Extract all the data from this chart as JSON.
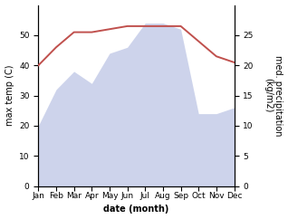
{
  "months": [
    "Jan",
    "Feb",
    "Mar",
    "Apr",
    "May",
    "Jun",
    "Jul",
    "Aug",
    "Sep",
    "Oct",
    "Nov",
    "Dec"
  ],
  "month_positions": [
    1,
    2,
    3,
    4,
    5,
    6,
    7,
    8,
    9,
    10,
    11,
    12
  ],
  "max_temp": [
    40,
    46,
    51,
    51,
    52,
    53,
    53,
    53,
    53,
    48,
    43,
    41
  ],
  "precipitation": [
    10,
    16,
    19,
    17,
    22,
    23,
    27,
    27,
    26,
    12,
    12,
    13
  ],
  "temp_color": "#c0504d",
  "precip_fill_color": "#c5cce8",
  "ylabel_left": "max temp (C)",
  "ylabel_right": "med. precipitation\n(kg/m2)",
  "xlabel": "date (month)",
  "ylim_left": [
    0,
    60
  ],
  "ylim_right": [
    0,
    30
  ],
  "yticks_left": [
    0,
    10,
    20,
    30,
    40,
    50
  ],
  "yticks_right": [
    0,
    5,
    10,
    15,
    20,
    25
  ],
  "background_color": "#ffffff",
  "label_fontsize": 7,
  "tick_fontsize": 6.5
}
